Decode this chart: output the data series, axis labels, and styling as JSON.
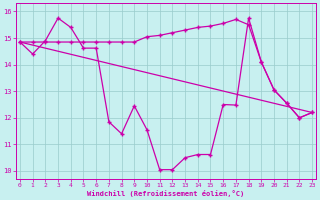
{
  "bg_color": "#c8f0f0",
  "line_color": "#cc00aa",
  "grid_color": "#99cccc",
  "xlabel": "Windchill (Refroidissement éolien,°C)",
  "xlabel_color": "#cc00aa",
  "tick_color": "#cc00aa",
  "yticks": [
    10,
    11,
    12,
    13,
    14,
    15,
    16
  ],
  "xticks": [
    0,
    1,
    2,
    3,
    4,
    5,
    6,
    7,
    8,
    9,
    10,
    11,
    12,
    13,
    14,
    15,
    16,
    17,
    18,
    19,
    20,
    21,
    22,
    23
  ],
  "xlim": [
    -0.3,
    23.3
  ],
  "ylim": [
    9.7,
    16.3
  ],
  "curve1_x": [
    0,
    1,
    2,
    3,
    4,
    5,
    6,
    7,
    8,
    9,
    10,
    11,
    12,
    13,
    14,
    15,
    16,
    17,
    18,
    19,
    20,
    21,
    22,
    23
  ],
  "curve1_y": [
    14.85,
    14.4,
    14.9,
    15.75,
    15.4,
    14.62,
    14.62,
    11.85,
    11.4,
    12.45,
    11.55,
    10.05,
    10.05,
    10.5,
    10.62,
    10.62,
    12.5,
    12.48,
    15.75,
    14.1,
    13.05,
    12.55,
    12.0,
    12.2
  ],
  "curve2_x": [
    0,
    1,
    2,
    3,
    4,
    5,
    6,
    7,
    8,
    9,
    10,
    11,
    12,
    13,
    14,
    15,
    16,
    17,
    18,
    19,
    20,
    21,
    22,
    23
  ],
  "curve2_y": [
    14.85,
    14.85,
    14.85,
    14.85,
    14.85,
    14.85,
    14.85,
    14.85,
    14.85,
    14.85,
    15.05,
    15.1,
    15.2,
    15.3,
    15.4,
    15.45,
    15.55,
    15.7,
    15.5,
    14.1,
    13.05,
    12.55,
    12.0,
    12.2
  ],
  "curve3_x": [
    0,
    23
  ],
  "curve3_y": [
    14.85,
    12.2
  ]
}
